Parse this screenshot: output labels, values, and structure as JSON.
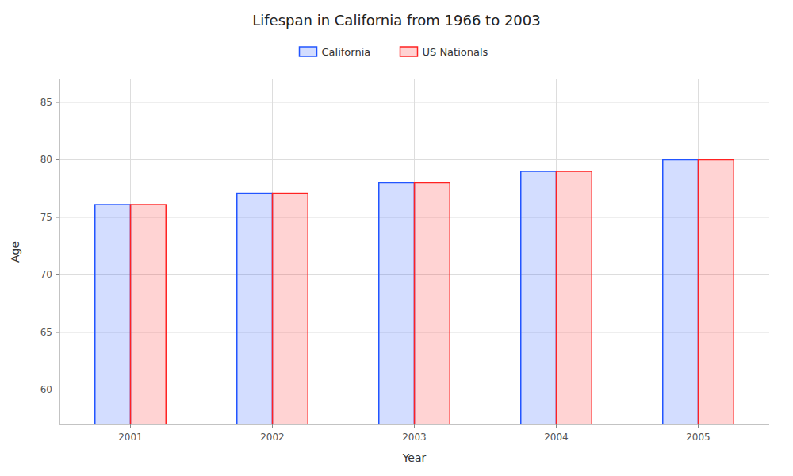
{
  "chart_data": {
    "type": "bar",
    "title": "Lifespan in California from 1966 to 2003",
    "xlabel": "Year",
    "ylabel": "Age",
    "categories": [
      "2001",
      "2002",
      "2003",
      "2004",
      "2005"
    ],
    "series": [
      {
        "name": "California",
        "color": "#2255ff",
        "values": [
          76.1,
          77.1,
          78.0,
          79.0,
          80.0
        ]
      },
      {
        "name": "US Nationals",
        "color": "#ff2222",
        "values": [
          76.1,
          77.1,
          78.0,
          79.0,
          80.0
        ]
      }
    ],
    "ylim": [
      57,
      87
    ],
    "yticks": [
      60,
      65,
      70,
      75,
      80,
      85
    ],
    "grid": true,
    "legend": "top"
  }
}
